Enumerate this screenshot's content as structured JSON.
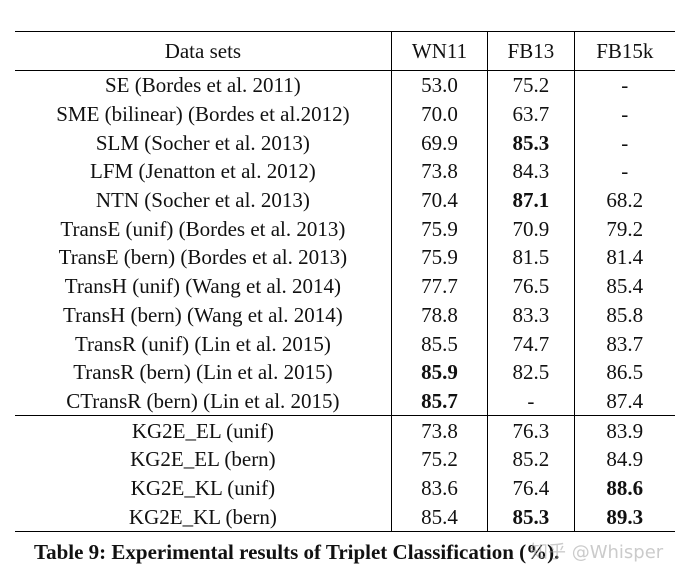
{
  "table": {
    "headers": [
      "Data sets",
      "WN11",
      "FB13",
      "FB15k"
    ],
    "groups": [
      [
        {
          "method": "SE (Bordes et al. 2011)",
          "values": [
            "53.0",
            "75.2",
            "-"
          ],
          "bold": [
            false,
            false,
            false
          ]
        },
        {
          "method": "SME (bilinear) (Bordes et al.2012)",
          "values": [
            "70.0",
            "63.7",
            "-"
          ],
          "bold": [
            false,
            false,
            false
          ]
        },
        {
          "method": "SLM (Socher et al. 2013)",
          "values": [
            "69.9",
            "85.3",
            "-"
          ],
          "bold": [
            false,
            true,
            false
          ]
        },
        {
          "method": "LFM (Jenatton et al. 2012)",
          "values": [
            "73.8",
            "84.3",
            "-"
          ],
          "bold": [
            false,
            false,
            false
          ]
        },
        {
          "method": "NTN (Socher et al. 2013)",
          "values": [
            "70.4",
            "87.1",
            "68.2"
          ],
          "bold": [
            false,
            true,
            false
          ]
        },
        {
          "method": "TransE (unif) (Bordes et al. 2013)",
          "values": [
            "75.9",
            "70.9",
            "79.2"
          ],
          "bold": [
            false,
            false,
            false
          ]
        },
        {
          "method": "TransE (bern) (Bordes et al. 2013)",
          "values": [
            "75.9",
            "81.5",
            "81.4"
          ],
          "bold": [
            false,
            false,
            false
          ]
        },
        {
          "method": "TransH (unif) (Wang et al. 2014)",
          "values": [
            "77.7",
            "76.5",
            "85.4"
          ],
          "bold": [
            false,
            false,
            false
          ]
        },
        {
          "method": "TransH (bern) (Wang et al. 2014)",
          "values": [
            "78.8",
            "83.3",
            "85.8"
          ],
          "bold": [
            false,
            false,
            false
          ]
        },
        {
          "method": "TransR (unif) (Lin et al. 2015)",
          "values": [
            "85.5",
            "74.7",
            "83.7"
          ],
          "bold": [
            false,
            false,
            false
          ]
        },
        {
          "method": "TransR (bern) (Lin et al. 2015)",
          "values": [
            "85.9",
            "82.5",
            "86.5"
          ],
          "bold": [
            true,
            false,
            false
          ]
        },
        {
          "method": "CTransR (bern) (Lin et al. 2015)",
          "values": [
            "85.7",
            "-",
            "87.4"
          ],
          "bold": [
            true,
            false,
            false
          ]
        }
      ],
      [
        {
          "method": "KG2E_EL (unif)",
          "values": [
            "73.8",
            "76.3",
            "83.9"
          ],
          "bold": [
            false,
            false,
            false
          ]
        },
        {
          "method": "KG2E_EL (bern)",
          "values": [
            "75.2",
            "85.2",
            "84.9"
          ],
          "bold": [
            false,
            false,
            false
          ]
        },
        {
          "method": "KG2E_KL (unif)",
          "values": [
            "83.6",
            "76.4",
            "88.6"
          ],
          "bold": [
            false,
            false,
            true
          ]
        },
        {
          "method": "KG2E_KL (bern)",
          "values": [
            "85.4",
            "85.3",
            "89.3"
          ],
          "bold": [
            false,
            true,
            true
          ]
        }
      ]
    ]
  },
  "caption": "Table 9: Experimental results of Triplet Classification (%).",
  "watermark": "知乎 @Whisper"
}
